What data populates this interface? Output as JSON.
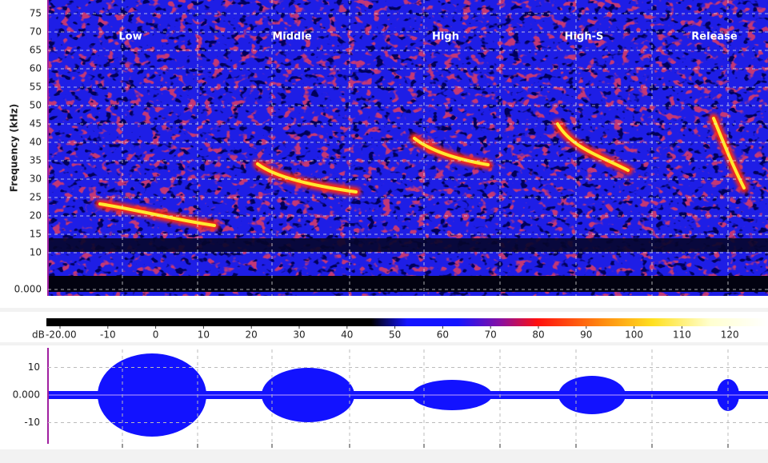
{
  "spectrogram": {
    "ylabel": "Frequency (kHz)",
    "yticks": [
      75,
      70,
      65,
      60,
      55,
      50,
      45,
      40,
      35,
      30,
      25,
      20,
      15,
      10,
      {
        "value": 0,
        "label": "0.000"
      }
    ],
    "sections": [
      "Low",
      "Middle",
      "High",
      "High-S",
      "Release"
    ]
  },
  "colorbar": {
    "unit": "dB",
    "ticks": [
      {
        "value": -20,
        "label": "-20.00"
      },
      -10,
      0,
      10,
      20,
      30,
      40,
      50,
      60,
      70,
      80,
      90,
      100,
      110,
      120
    ]
  },
  "waveform": {
    "yticks": [
      10,
      {
        "value": 0,
        "label": "0.000"
      },
      -10
    ]
  }
}
